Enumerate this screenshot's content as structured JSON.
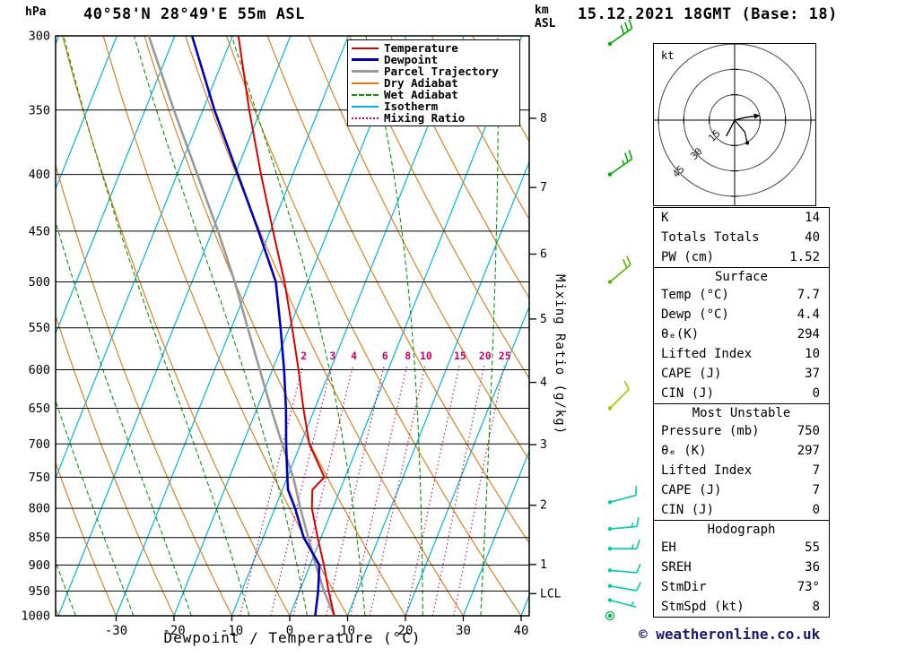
{
  "header": {
    "station": "40°58'N 28°49'E 55m ASL",
    "datetime": "15.12.2021 18GMT (Base: 18)"
  },
  "axes": {
    "pressure_unit": "hPa",
    "height_unit": "km\nASL",
    "x_title": "Dewpoint / Temperature (°C)",
    "mixing_ratio_title": "Mixing Ratio (g/kg)",
    "pressure_ticks": [
      300,
      350,
      400,
      450,
      500,
      550,
      600,
      650,
      700,
      750,
      800,
      850,
      900,
      950,
      1000
    ],
    "temp_ticks": [
      -30,
      -20,
      -10,
      0,
      10,
      20,
      30,
      40
    ],
    "height_ticks": [
      {
        "label": "8",
        "p": 356
      },
      {
        "label": "7",
        "p": 411
      },
      {
        "label": "6",
        "p": 472
      },
      {
        "label": "5",
        "p": 540
      },
      {
        "label": "4",
        "p": 616
      },
      {
        "label": "3",
        "p": 701
      },
      {
        "label": "2",
        "p": 795
      },
      {
        "label": "1",
        "p": 899
      },
      {
        "label": "LCL",
        "p": 955
      }
    ]
  },
  "legend": {
    "items": [
      {
        "label": "Temperature",
        "color": "#dd0000",
        "style": "solid",
        "width": 2
      },
      {
        "label": "Dewpoint",
        "color": "#0000bb",
        "style": "solid",
        "width": 3
      },
      {
        "label": "Parcel Trajectory",
        "color": "#999999",
        "style": "solid",
        "width": 3
      },
      {
        "label": "Dry Adiabat",
        "color": "#dd7711",
        "style": "solid",
        "width": 2
      },
      {
        "label": "Wet Adiabat",
        "color": "#009900",
        "style": "dashed",
        "width": 2
      },
      {
        "label": "Isotherm",
        "color": "#00b4e4",
        "style": "solid",
        "width": 2
      },
      {
        "label": "Mixing Ratio",
        "color": "#cc0066",
        "style": "dotted",
        "width": 2
      }
    ]
  },
  "colors": {
    "temperature": "#dd0000",
    "dewpoint": "#0000bb",
    "parcel": "#999999",
    "dry_adiabat": "#dd7711",
    "wet_adiabat": "#009900",
    "isotherm": "#00b4e4",
    "mixing_ratio": "#cc0066",
    "grid": "#000000"
  },
  "chart_data": {
    "type": "skewt-log-p",
    "pressure_range_hpa": [
      300,
      1000
    ],
    "temp_axis_c": {
      "min": -30,
      "max": 40,
      "step": 10
    },
    "isotherms_c": {
      "min": -80,
      "max": 40,
      "step": 10
    },
    "dry_adiabats_c": {
      "min": -40,
      "max": 100,
      "step": 10
    },
    "wet_adiabats_c": [
      -57,
      -47,
      -37,
      -27,
      -17,
      -7,
      3,
      13,
      23,
      33
    ],
    "mixing_ratio_gkg": [
      2,
      3,
      4,
      6,
      8,
      10,
      15,
      20,
      25
    ],
    "sounding": {
      "pressure": [
        1000,
        950,
        900,
        850,
        800,
        770,
        750,
        700,
        650,
        600,
        550,
        500,
        450,
        400,
        350,
        300
      ],
      "temperature": [
        7.7,
        5.0,
        2.4,
        -0.6,
        -3.6,
        -4.8,
        -3.6,
        -8.5,
        -12.0,
        -15.5,
        -19.5,
        -24.0,
        -29.5,
        -35.5,
        -42.0,
        -49.0
      ],
      "dewpoint": [
        4.4,
        3.2,
        1.6,
        -3.0,
        -6.5,
        -9.0,
        -10.0,
        -12.5,
        -15.0,
        -18.0,
        -21.5,
        -25.5,
        -32.0,
        -39.5,
        -48.0,
        -57.0
      ],
      "parcel": [
        7.7,
        4.2,
        1.0,
        -2.2,
        -5.6,
        -7.6,
        -9.0,
        -13.2,
        -17.6,
        -22.2,
        -27.2,
        -32.6,
        -39.0,
        -46.5,
        -55.0,
        -64.5
      ]
    },
    "wind_barbs": [
      {
        "p": 305,
        "kt": 30,
        "dir": 55,
        "color": "#00aa00"
      },
      {
        "p": 400,
        "kt": 25,
        "dir": 55,
        "color": "#00aa00"
      },
      {
        "p": 500,
        "kt": 20,
        "dir": 50,
        "color": "#55bb00"
      },
      {
        "p": 650,
        "kt": 10,
        "dir": 45,
        "color": "#99cc00"
      },
      {
        "p": 790,
        "kt": 10,
        "dir": 75,
        "color": "#00ccaa"
      },
      {
        "p": 835,
        "kt": 15,
        "dir": 85,
        "color": "#00ccaa"
      },
      {
        "p": 870,
        "kt": 15,
        "dir": 90,
        "color": "#00ccaa"
      },
      {
        "p": 910,
        "kt": 10,
        "dir": 95,
        "color": "#00ccaa"
      },
      {
        "p": 940,
        "kt": 10,
        "dir": 100,
        "color": "#00ccaa"
      },
      {
        "p": 968,
        "kt": 5,
        "dir": 105,
        "color": "#00ccaa"
      },
      {
        "p": 1000,
        "kt": 2,
        "dir": 0,
        "color": "#00bb44"
      }
    ],
    "hodograph": {
      "unit": "kt",
      "rings_kt": [
        15,
        30,
        45
      ],
      "trace_uv": [
        [
          -5,
          -9.5
        ],
        [
          -2,
          -4
        ],
        [
          0,
          0
        ],
        [
          6,
          1.5
        ],
        [
          11.5,
          2.3
        ]
      ],
      "branch_uv": [
        [
          0,
          0
        ],
        [
          6,
          -7
        ],
        [
          7.5,
          -13.5
        ]
      ]
    }
  },
  "stats": {
    "sections": [
      {
        "header": null,
        "rows": [
          [
            "K",
            "14"
          ],
          [
            "Totals Totals",
            "40"
          ],
          [
            "PW (cm)",
            "1.52"
          ]
        ]
      },
      {
        "header": "Surface",
        "rows": [
          [
            "Temp (°C)",
            "7.7"
          ],
          [
            "Dewp (°C)",
            "4.4"
          ],
          [
            "θₑ(K)",
            "294"
          ],
          [
            "Lifted Index",
            "10"
          ],
          [
            "CAPE (J)",
            "37"
          ],
          [
            "CIN (J)",
            "0"
          ]
        ]
      },
      {
        "header": "Most Unstable",
        "rows": [
          [
            "Pressure (mb)",
            "750"
          ],
          [
            "θₑ (K)",
            "297"
          ],
          [
            "Lifted Index",
            "7"
          ],
          [
            "CAPE (J)",
            "7"
          ],
          [
            "CIN (J)",
            "0"
          ]
        ]
      },
      {
        "header": "Hodograph",
        "rows": [
          [
            "EH",
            "55"
          ],
          [
            "SREH",
            "36"
          ],
          [
            "StmDir",
            "73°"
          ],
          [
            "StmSpd (kt)",
            "8"
          ]
        ]
      }
    ]
  },
  "footer": {
    "copyright": "© weatheronline.co.uk"
  }
}
